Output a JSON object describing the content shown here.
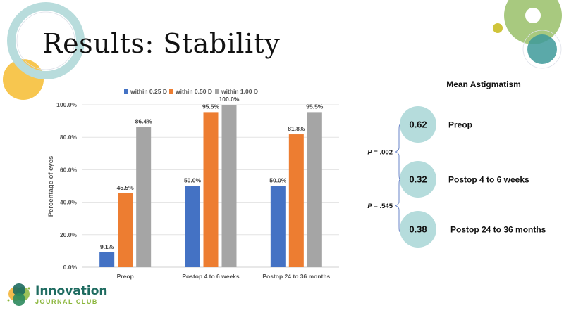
{
  "slide": {
    "title": "Results: Stability"
  },
  "colors": {
    "series": [
      "#4472c4",
      "#ed7d31",
      "#a5a5a5"
    ],
    "ring": "#b8dcdc",
    "yellow": "#f7c64f",
    "green": "#a8c97f",
    "teal": "#3e9a9a",
    "olive": "#cfc43a",
    "bubble": "#b5dcdc",
    "brace": "#6a86c8"
  },
  "chart_data": {
    "type": "bar",
    "title": "",
    "xlabel": "",
    "ylabel": "Percentage of eyes",
    "ylim": [
      0,
      100
    ],
    "yticks": [
      "0.0%",
      "20.0%",
      "40.0%",
      "60.0%",
      "80.0%",
      "100.0%"
    ],
    "ytick_values": [
      0,
      20,
      40,
      60,
      80,
      100
    ],
    "grid": true,
    "legend": "top",
    "categories": [
      "Preop",
      "Postop 4 to 6 weeks",
      "Postop 24 to 36 months"
    ],
    "series": [
      {
        "name": "within 0.25 D",
        "values": [
          9.1,
          50.0,
          50.0
        ],
        "labels": [
          "9.1%",
          "50.0%",
          "50.0%"
        ]
      },
      {
        "name": "within 0.50 D",
        "values": [
          45.5,
          95.5,
          81.8
        ],
        "labels": [
          "45.5%",
          "95.5%",
          "81.8%"
        ]
      },
      {
        "name": "within 1.00 D",
        "values": [
          86.4,
          100.0,
          95.5
        ],
        "labels": [
          "86.4%",
          "100.0%",
          "95.5%"
        ]
      }
    ]
  },
  "astigmatism": {
    "heading": "Mean Astigmatism",
    "items": [
      {
        "value": "0.62",
        "label": "Preop"
      },
      {
        "value": "0.32",
        "label": "Postop 4 to 6 weeks"
      },
      {
        "value": "0.38",
        "label": "Postop 24 to 36 months"
      }
    ],
    "pvalues": [
      {
        "p": "P",
        "rest": " = .002"
      },
      {
        "p": "P",
        "rest": " = .545"
      }
    ]
  },
  "logo": {
    "main": "Innovation",
    "sub": "JOURNAL CLUB"
  }
}
